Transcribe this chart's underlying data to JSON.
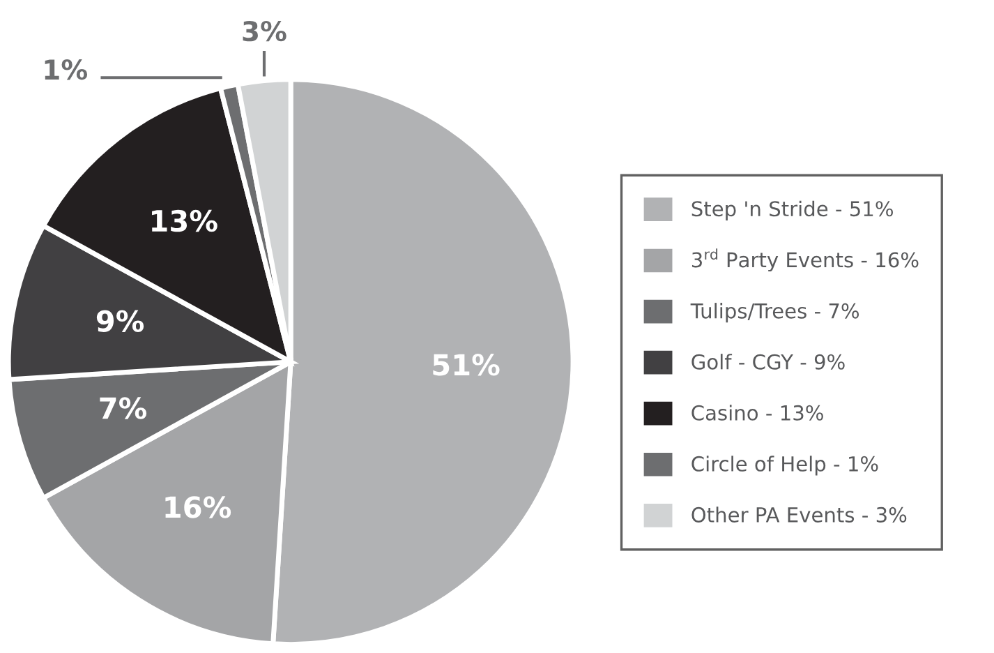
{
  "chart_data": {
    "type": "pie",
    "categories": [
      "Step 'n Stride - 51%",
      "3$^{rd}$ Party Events - 16%",
      "Tulips/Trees - 7%",
      "Golf - CGY - 9%",
      "Casino - 13%",
      "Circle of Help - 1%",
      "Other PA Events - 3%"
    ],
    "values": [
      51,
      16,
      7,
      9,
      13,
      1,
      3
    ],
    "value_labels": [
      "51%",
      "16%",
      "7%",
      "9%",
      "13%",
      "1%",
      "3%"
    ],
    "colors": [
      "#b1b2b4",
      "#a4a5a7",
      "#6d6e70",
      "#414042",
      "#231f20",
      "#6d6e70",
      "#d1d3d4"
    ],
    "legend": "right"
  }
}
